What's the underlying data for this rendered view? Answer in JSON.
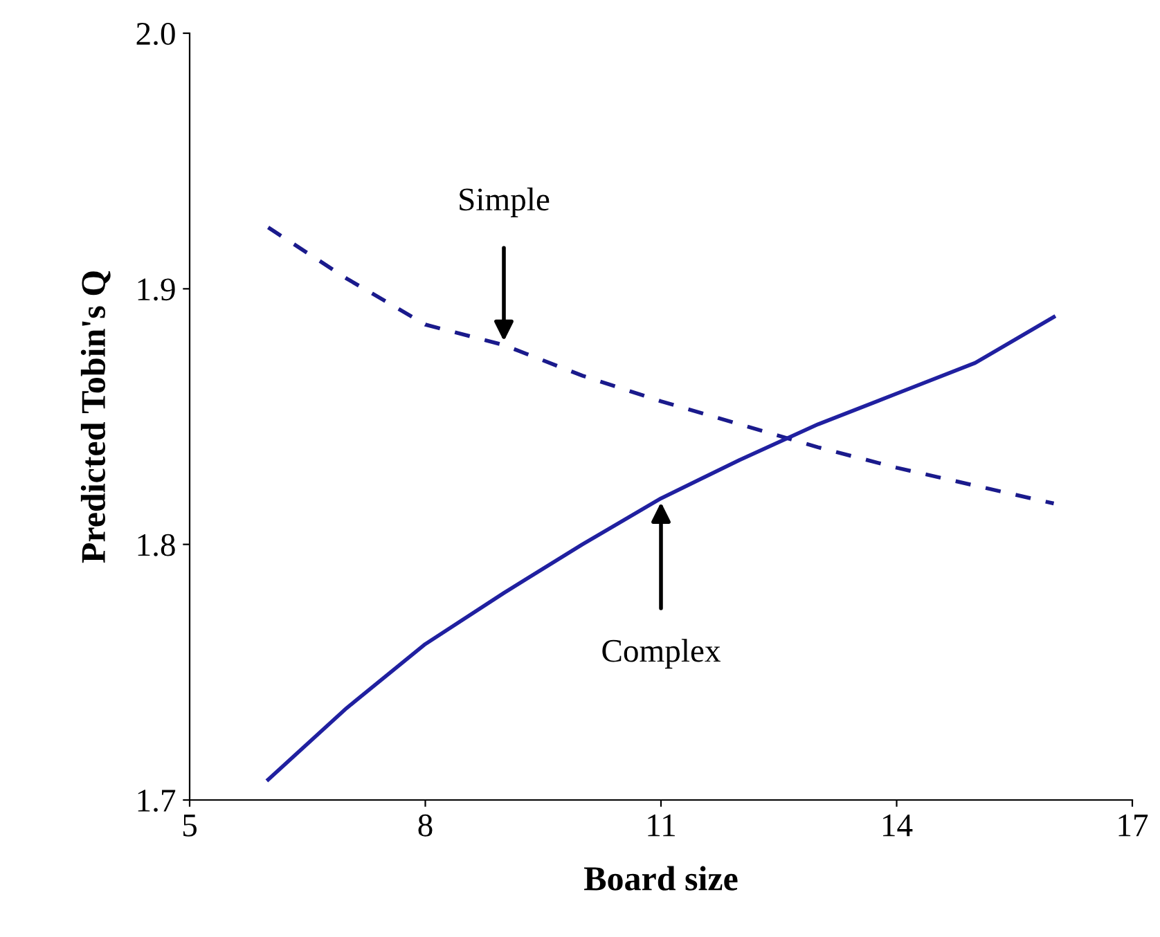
{
  "chart_data": {
    "type": "line",
    "xlabel": "Board size",
    "ylabel": "Predicted Tobin's Q",
    "series": [
      {
        "color": "#1a1a8c",
        "line_style": "dashed",
        "x": [
          6,
          7,
          8,
          9,
          10,
          11,
          12,
          13,
          14,
          15,
          16
        ],
        "values": [
          1.924,
          1.904,
          1.886,
          1.878,
          1.866,
          1.856,
          1.847,
          1.838,
          1.83,
          1.823,
          1.816
        ]
      },
      {
        "color": "#2020a0",
        "line_style": "solid",
        "x": [
          6,
          7,
          8,
          9,
          10,
          11,
          12,
          13,
          14,
          15,
          16
        ],
        "values": [
          1.708,
          1.736,
          1.761,
          1.781,
          1.8,
          1.818,
          1.833,
          1.847,
          1.859,
          1.871,
          1.889
        ]
      }
    ],
    "annotations": [
      {
        "text": "Simple",
        "x": 9,
        "y": 1.878
      },
      {
        "text": "Complex",
        "x": 11,
        "y": 1.818
      }
    ],
    "xlim": [
      5,
      17
    ],
    "xticks": [
      5,
      8,
      11,
      14,
      17
    ],
    "ylim": [
      1.7,
      2.0
    ],
    "yticks": [
      1.7,
      1.8,
      1.9,
      {
        "value": 2.0,
        "label": "2.0"
      }
    ],
    "grid": false,
    "legend": false
  }
}
